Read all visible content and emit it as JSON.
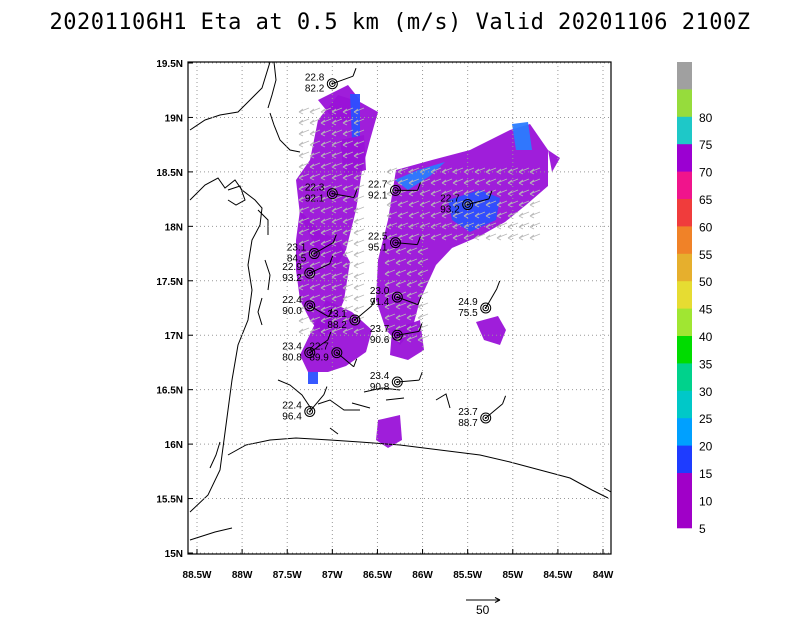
{
  "title": "20201106H1 Eta at 0.5 km (m/s) Valid 20201106  2100Z",
  "map": {
    "lon_range": [
      -88.5,
      -84.0
    ],
    "lat_range": [
      15.0,
      19.5
    ],
    "grid": true,
    "lat_ticks": [
      {
        "value": 19.5,
        "label": "19.5N"
      },
      {
        "value": 19.0,
        "label": "19N"
      },
      {
        "value": 18.5,
        "label": "18.5N"
      },
      {
        "value": 18.0,
        "label": "18N"
      },
      {
        "value": 17.5,
        "label": "17.5N"
      },
      {
        "value": 17.0,
        "label": "17N"
      },
      {
        "value": 16.5,
        "label": "16.5N"
      },
      {
        "value": 16.0,
        "label": "16N"
      },
      {
        "value": 15.5,
        "label": "15.5N"
      },
      {
        "value": 15.0,
        "label": "15N"
      }
    ],
    "lon_ticks": [
      {
        "value": -88.5,
        "label": "88.5W"
      },
      {
        "value": -88.0,
        "label": "88W"
      },
      {
        "value": -87.5,
        "label": "87.5W"
      },
      {
        "value": -87.0,
        "label": "87W"
      },
      {
        "value": -86.5,
        "label": "86.5W"
      },
      {
        "value": -86.0,
        "label": "86W"
      },
      {
        "value": -85.5,
        "label": "85.5W"
      },
      {
        "value": -85.0,
        "label": "85W"
      },
      {
        "value": -84.5,
        "label": "84.5W"
      },
      {
        "value": -84.0,
        "label": "84W"
      }
    ],
    "colorbar": {
      "levels": [
        {
          "label": "",
          "color": "#a0a0a0"
        },
        {
          "label": "80",
          "color": "#96dc3c"
        },
        {
          "label": "75",
          "color": "#1ec8c8"
        },
        {
          "label": "70",
          "color": "#9b00d2"
        },
        {
          "label": "65",
          "color": "#f0148c"
        },
        {
          "label": "60",
          "color": "#f03c3c"
        },
        {
          "label": "55",
          "color": "#f08228"
        },
        {
          "label": "50",
          "color": "#e6af2d"
        },
        {
          "label": "45",
          "color": "#e6dc32"
        },
        {
          "label": "40",
          "color": "#a0e632"
        },
        {
          "label": "35",
          "color": "#00dc00"
        },
        {
          "label": "30",
          "color": "#00d28c"
        },
        {
          "label": "25",
          "color": "#00c8c8"
        },
        {
          "label": "20",
          "color": "#00a0ff"
        },
        {
          "label": "15",
          "color": "#1e3cff"
        },
        {
          "label": "10",
          "color": "#a000c8"
        },
        {
          "label": "5",
          "color": "#a000c8"
        }
      ]
    },
    "reference_vector_label": "50",
    "stations": [
      {
        "lon": -87.0,
        "lat": 19.31,
        "t": "22.8",
        "h": "82.2"
      },
      {
        "lon": -87.0,
        "lat": 18.3,
        "t": "22.3",
        "h": "92.1"
      },
      {
        "lon": -86.3,
        "lat": 18.33,
        "t": "22.7",
        "h": "92.1"
      },
      {
        "lon": -85.5,
        "lat": 18.2,
        "t": "22.7",
        "h": "93.2"
      },
      {
        "lon": -86.3,
        "lat": 17.85,
        "t": "22.5",
        "h": "95.1"
      },
      {
        "lon": -87.2,
        "lat": 17.75,
        "t": "23.1",
        "h": "84.5"
      },
      {
        "lon": -87.25,
        "lat": 17.57,
        "t": "22.9",
        "h": "93.2"
      },
      {
        "lon": -87.25,
        "lat": 17.27,
        "t": "22.4",
        "h": "90.0"
      },
      {
        "lon": -86.28,
        "lat": 17.35,
        "t": "23.0",
        "h": "91.4"
      },
      {
        "lon": -86.75,
        "lat": 17.14,
        "t": "23.1",
        "h": "88.2"
      },
      {
        "lon": -86.28,
        "lat": 17.0,
        "t": "23.7",
        "h": "90.6"
      },
      {
        "lon": -85.3,
        "lat": 17.25,
        "t": "24.9",
        "h": "75.5"
      },
      {
        "lon": -87.25,
        "lat": 16.84,
        "t": "23.4",
        "h": "80.8"
      },
      {
        "lon": -86.95,
        "lat": 16.84,
        "t": "22.7",
        "h": "89.9"
      },
      {
        "lon": -86.28,
        "lat": 16.57,
        "t": "23.4",
        "h": "90.8"
      },
      {
        "lon": -87.25,
        "lat": 16.3,
        "t": "22.4",
        "h": "96.4"
      },
      {
        "lon": -85.3,
        "lat": 16.24,
        "t": "23.7",
        "h": "88.7"
      }
    ]
  }
}
